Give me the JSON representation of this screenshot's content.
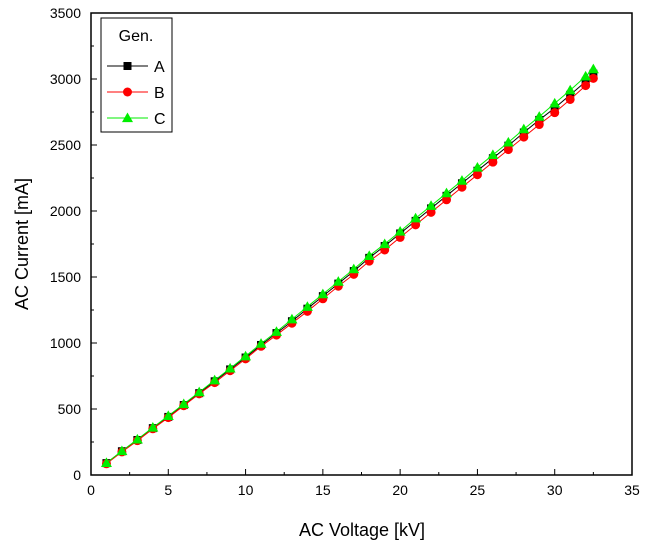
{
  "chart_data": {
    "type": "line",
    "xlabel": "AC Voltage [kV]",
    "ylabel": "AC Current [mA]",
    "xlim": [
      0,
      35
    ],
    "ylim": [
      0,
      3500
    ],
    "xticks": [
      "0",
      "5",
      "10",
      "15",
      "20",
      "25",
      "30",
      "35"
    ],
    "yticks": [
      "0",
      "500",
      "1000",
      "1500",
      "2000",
      "2500",
      "3000",
      "3500"
    ],
    "grid": false,
    "legend": {
      "title": "Gen.",
      "placement": "top-left"
    },
    "x": [
      1,
      2,
      3,
      4,
      5,
      6,
      7,
      8,
      9,
      10,
      11,
      12,
      13,
      14,
      15,
      16,
      17,
      18,
      19,
      20,
      21,
      22,
      23,
      24,
      25,
      26,
      27,
      28,
      29,
      30,
      31,
      32,
      32.5
    ],
    "series": [
      {
        "name": "A",
        "color": "#000000",
        "marker": "square",
        "values": [
          90,
          180,
          265,
          355,
          440,
          530,
          620,
          710,
          800,
          890,
          985,
          1075,
          1165,
          1260,
          1355,
          1450,
          1545,
          1645,
          1735,
          1830,
          1925,
          2020,
          2115,
          2210,
          2305,
          2400,
          2495,
          2595,
          2690,
          2780,
          2880,
          2980,
          3040
        ]
      },
      {
        "name": "B",
        "color": "#ff0000",
        "marker": "circle",
        "values": [
          85,
          175,
          260,
          350,
          435,
          525,
          615,
          700,
          790,
          880,
          975,
          1060,
          1150,
          1240,
          1335,
          1430,
          1520,
          1620,
          1705,
          1800,
          1895,
          1990,
          2085,
          2180,
          2275,
          2370,
          2465,
          2560,
          2655,
          2745,
          2845,
          2950,
          3005
        ]
      },
      {
        "name": "C",
        "color": "#00ee00",
        "marker": "triangle",
        "values": [
          92,
          182,
          270,
          360,
          448,
          538,
          628,
          718,
          808,
          900,
          995,
          1085,
          1180,
          1275,
          1370,
          1465,
          1560,
          1660,
          1750,
          1845,
          1945,
          2040,
          2135,
          2230,
          2330,
          2425,
          2520,
          2620,
          2715,
          2815,
          2915,
          3020,
          3075
        ]
      }
    ]
  }
}
